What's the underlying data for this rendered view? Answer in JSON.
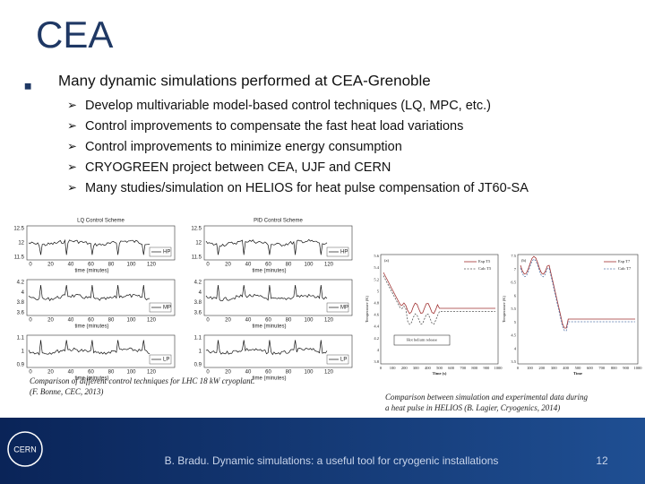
{
  "header": {
    "title": "CEA"
  },
  "body": {
    "bullet": "Many dynamic simulations performed at CEA-Grenoble",
    "items": [
      "Develop multivariable model-based control techniques (LQ, MPC, etc.)",
      "Control improvements to compensate the fast heat load variations",
      "Control improvements to minimize energy consumption",
      "CRYOGREEN project between CEA, UJF and CERN",
      "Many studies/simulation on HELIOS for heat pulse compensation of JT60-SA"
    ]
  },
  "figures": {
    "left": {
      "titles": [
        "LQ Control Scheme",
        "PID Control Scheme"
      ],
      "panels": [
        {
          "legend": "HP",
          "yticks": [
            "12.5",
            "12",
            "11.5"
          ]
        },
        {
          "legend": "MP",
          "yticks": [
            "4.2",
            "4",
            "3.8",
            "3.6"
          ]
        },
        {
          "legend": "LP",
          "yticks": [
            "1.1",
            "1",
            "0.9"
          ]
        }
      ],
      "xticks": [
        "0",
        "20",
        "40",
        "60",
        "80",
        "100",
        "120"
      ],
      "xlabel": "time (minutes)",
      "caption": [
        "Comparison of different control techniques for LHC 18 kW cryoplant.",
        "(F. Bonne, CEC, 2013)"
      ]
    },
    "right": {
      "plots": [
        {
          "tag": "(a)",
          "legend": [
            "Exp T5",
            "Calc T5"
          ],
          "ylabel": "Temperature (K)",
          "xlabel": "Time (s)",
          "annotation": "Hot helium release",
          "yticks": [
            "5.6",
            "5.4",
            "5.2",
            "5",
            "4.8",
            "4.6",
            "4.4",
            "4.2",
            "4",
            "3.8"
          ],
          "xticks": [
            "0",
            "100",
            "200",
            "300",
            "400",
            "500",
            "600",
            "700",
            "800",
            "900",
            "1000"
          ]
        },
        {
          "tag": "(b)",
          "legend": [
            "Exp T7",
            "Calc T7"
          ],
          "ylabel": "Temperature (K)",
          "xlabel": "Time",
          "yticks": [
            "7.5",
            "7",
            "6.5",
            "6",
            "5.5",
            "5",
            "4.5",
            "4",
            "3.5"
          ],
          "xticks": [
            "0",
            "100",
            "200",
            "300",
            "400",
            "500",
            "600",
            "700",
            "800",
            "900",
            "1000"
          ]
        }
      ],
      "caption": [
        "Comparison between simulation and experimental data during",
        "a heat pulse in HELIOS (B. Lagier, Cryogenics, 2014)"
      ]
    }
  },
  "footer": {
    "logo": "CERN",
    "text": "B. Bradu. Dynamic simulations: a useful tool for cryogenic installations",
    "page": "12"
  }
}
